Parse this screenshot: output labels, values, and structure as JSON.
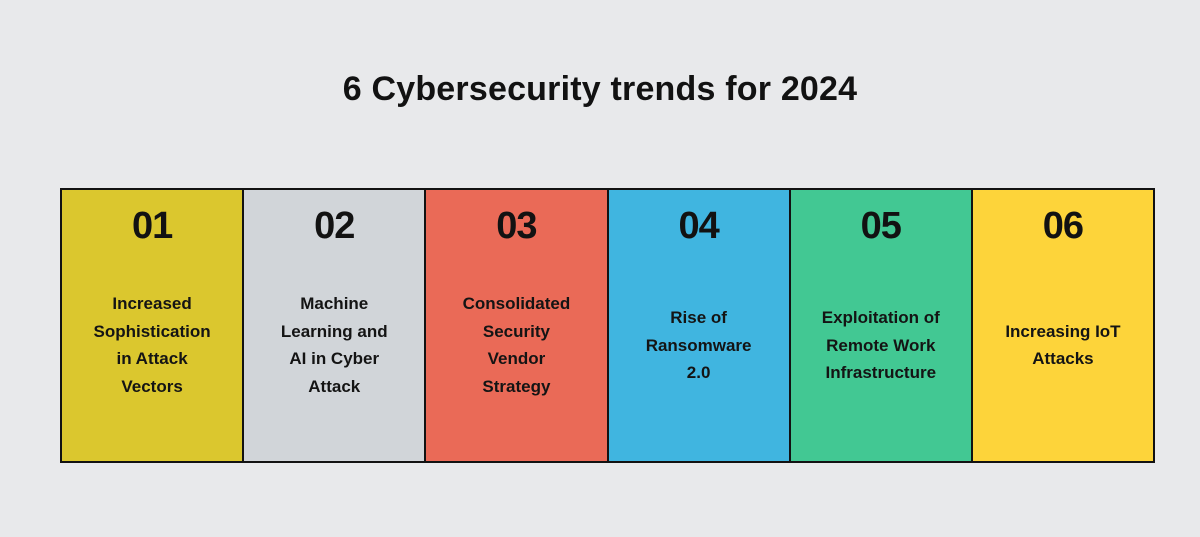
{
  "title": "6 Cybersecurity trends for 2024",
  "panels": [
    {
      "number": "01",
      "label": "Increased\nSophistication\nin Attack\nVectors",
      "color": "#dbc72e"
    },
    {
      "number": "02",
      "label": "Machine\nLearning and\nAI in Cyber\nAttack",
      "color": "#d1d5d9"
    },
    {
      "number": "03",
      "label": "Consolidated\nSecurity\nVendor\nStrategy",
      "color": "#ea6a57"
    },
    {
      "number": "04",
      "label": "Rise of\nRansomware\n2.0",
      "color": "#40b5e0"
    },
    {
      "number": "05",
      "label": "Exploitation of\nRemote Work\nInfrastructure",
      "color": "#42c893"
    },
    {
      "number": "06",
      "label": "Increasing IoT\nAttacks",
      "color": "#fdd43a"
    }
  ],
  "colors": {
    "background": "#e8e9eb",
    "border": "#121212",
    "text": "#141414"
  }
}
